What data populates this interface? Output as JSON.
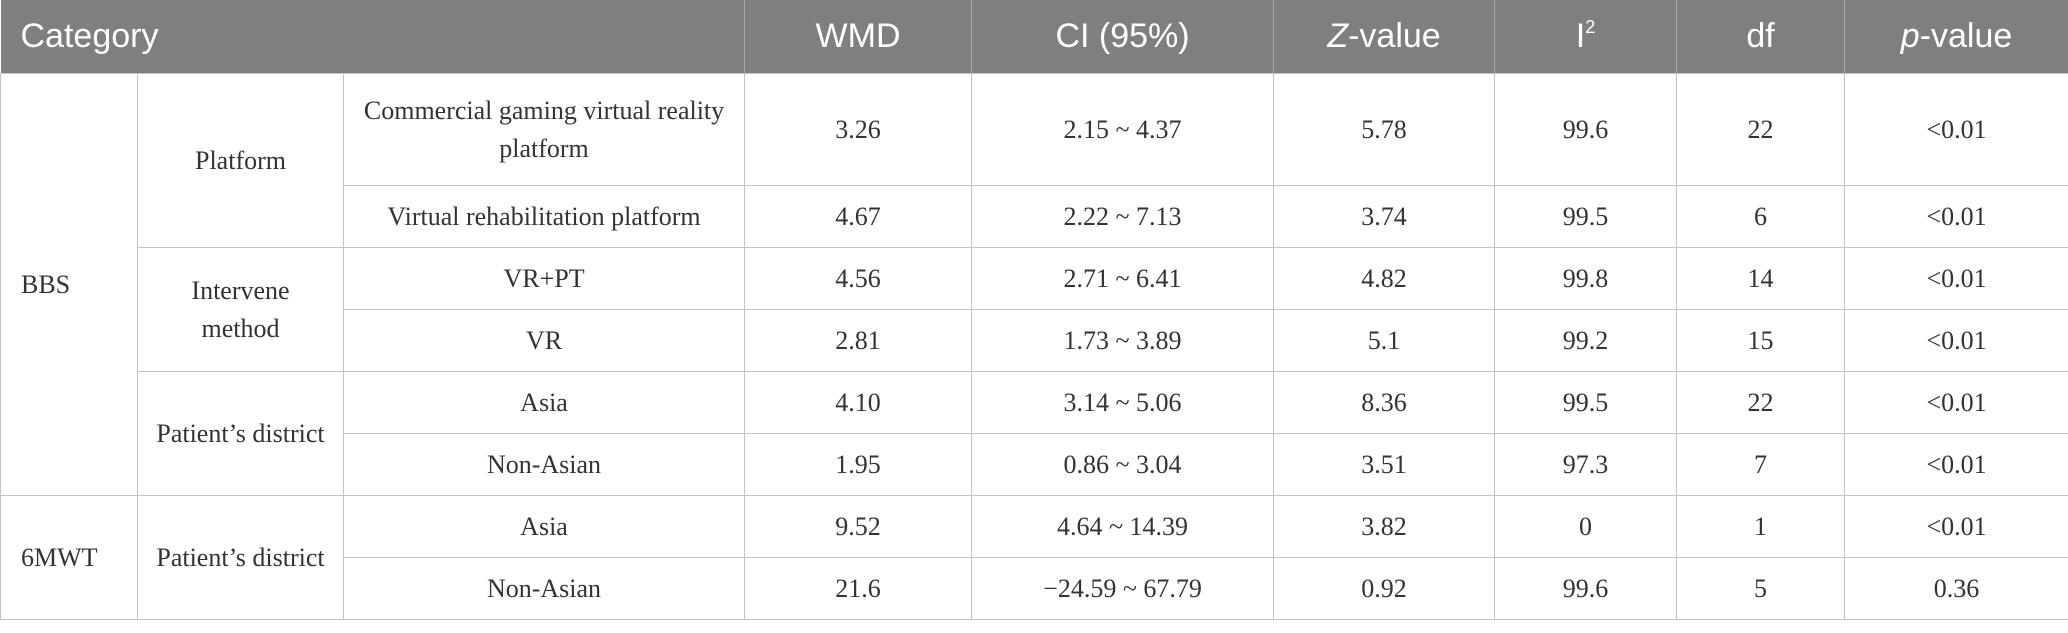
{
  "table": {
    "header": [
      "Category",
      "WMD",
      "CI (95%)",
      {
        "italic": "Z",
        "text": "-value"
      },
      {
        "text": "I",
        "sup": "2"
      },
      "df",
      {
        "italic": "p",
        "text": "-value"
      }
    ],
    "groups": [
      {
        "label": "BBS",
        "subgroups": [
          {
            "label": "Platform",
            "rows": [
              {
                "label": "Commercial gaming virtual reality platform",
                "values": [
                  "3.26",
                  "2.15 ~ 4.37",
                  "5.78",
                  "99.6",
                  "22",
                  "<0.01"
                ]
              },
              {
                "label": "Virtual rehabilitation platform",
                "values": [
                  "4.67",
                  "2.22 ~ 7.13",
                  "3.74",
                  "99.5",
                  "6",
                  "<0.01"
                ]
              }
            ]
          },
          {
            "label": "Intervene method",
            "rows": [
              {
                "label": "VR+PT",
                "values": [
                  "4.56",
                  "2.71 ~ 6.41",
                  "4.82",
                  "99.8",
                  "14",
                  "<0.01"
                ]
              },
              {
                "label": "VR",
                "values": [
                  "2.81",
                  "1.73 ~ 3.89",
                  "5.1",
                  "99.2",
                  "15",
                  "<0.01"
                ]
              }
            ]
          },
          {
            "label": "Patient’s district",
            "rows": [
              {
                "label": "Asia",
                "values": [
                  "4.10",
                  "3.14 ~ 5.06",
                  "8.36",
                  "99.5",
                  "22",
                  "<0.01"
                ]
              },
              {
                "label": "Non-Asian",
                "values": [
                  "1.95",
                  "0.86 ~ 3.04",
                  "3.51",
                  "97.3",
                  "7",
                  "<0.01"
                ]
              }
            ]
          }
        ]
      },
      {
        "label": "6MWT",
        "subgroups": [
          {
            "label": "Patient’s district",
            "rows": [
              {
                "label": "Asia",
                "values": [
                  "9.52",
                  "4.64 ~ 14.39",
                  "3.82",
                  "0",
                  "1",
                  "<0.01"
                ]
              },
              {
                "label": "Non-Asian",
                "values": [
                  "21.6",
                  "−24.59 ~ 67.79",
                  "0.92",
                  "99.6",
                  "5",
                  "0.36"
                ]
              }
            ]
          }
        ]
      }
    ]
  }
}
